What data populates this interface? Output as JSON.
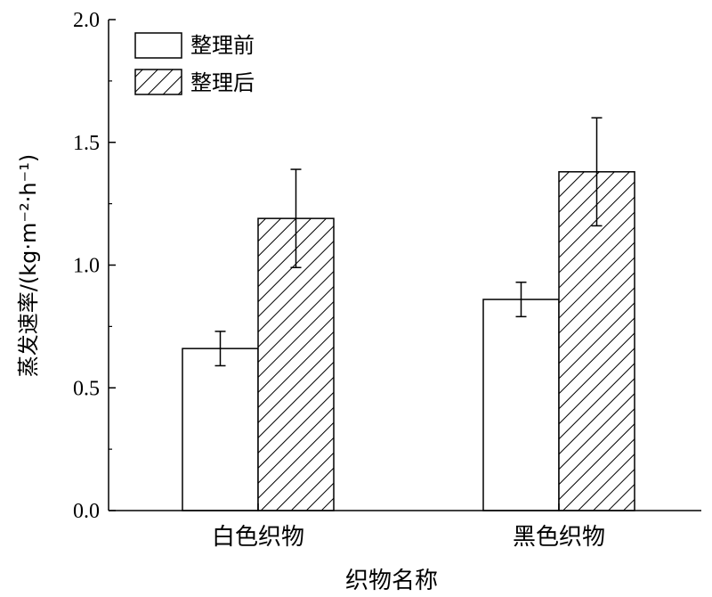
{
  "chart_data": {
    "type": "bar",
    "title": "",
    "xlabel": "织物名称",
    "ylabel": "蒸发速率/(kg·m⁻²·h⁻¹)",
    "ylim": [
      0,
      2.0
    ],
    "yticks": [
      "0.0",
      "0.5",
      "1.0",
      "1.5",
      "2.0"
    ],
    "categories": [
      "白色织物",
      "黑色织物"
    ],
    "series": [
      {
        "name": "整理前",
        "values": [
          0.66,
          0.86
        ],
        "errors": [
          0.07,
          0.07
        ],
        "pattern": "none"
      },
      {
        "name": "整理后",
        "values": [
          1.19,
          1.38
        ],
        "errors": [
          0.2,
          0.22
        ],
        "pattern": "hatch"
      }
    ],
    "legend_position": "top-left",
    "grid": false,
    "colors": {
      "bar_fill": "#ffffff",
      "stroke": "#000000"
    }
  }
}
